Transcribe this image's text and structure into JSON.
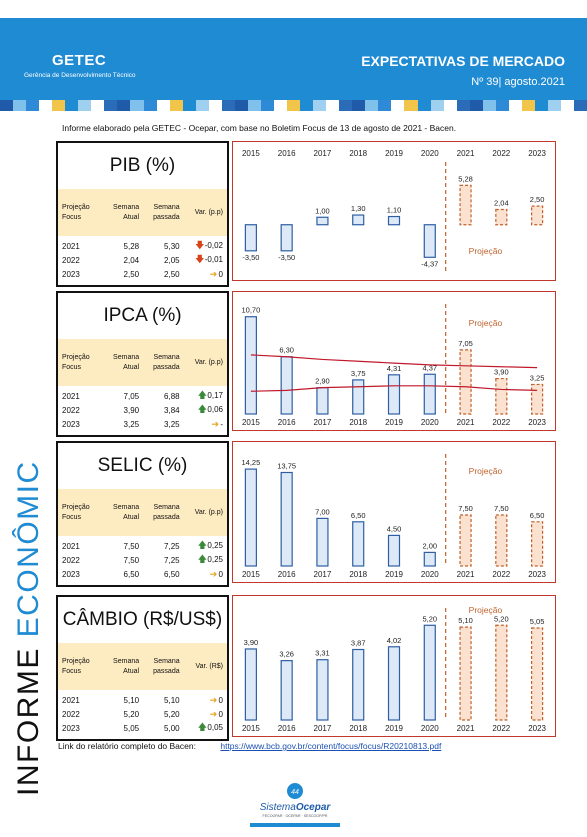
{
  "header": {
    "brand": "GETEC",
    "brand_sub": "Gerência de Desenvolvimento Técnico",
    "title": "EXPECTATIVAS DE MERCADO",
    "edition": "Nº 39| agosto.2021"
  },
  "intro": "Informe elaborado pela GETEC - Ocepar, com base no Boletim Focus de 13 de agosto de 2021 - Bacen.",
  "side_title": {
    "part1": "INFORME ",
    "part2": "ECONÔMICO"
  },
  "footer": {
    "label": "Link do relatório completo do Bacen:",
    "link": "https://www.bcb.gov.br/content/focus/focus/R20210813.pdf"
  },
  "logo": {
    "name_a": "Sistema",
    "name_b": "Ocepar",
    "sub": "FECOOPAR · OCEPAR · SESCOOP/PR"
  },
  "colors": {
    "header_blue": "#1f8bd3",
    "table_head": "#fdebc1",
    "bar_hist_fill": "#dde9f7",
    "bar_hist_stroke": "#2e5fa3",
    "bar_proj_fill": "#fbe1cf",
    "bar_proj_stroke": "#c0622b",
    "trend_red": "#c0192b"
  },
  "panels": [
    {
      "title": "PIB (%)",
      "headers": [
        "Projeção Focus",
        "Semana Atual",
        "Semana passada",
        "Var. (p.p)"
      ],
      "rows": [
        {
          "year": "2021",
          "atual": "5,28",
          "passada": "5,30",
          "trend": "down",
          "var": "-0,02"
        },
        {
          "year": "2022",
          "atual": "2,04",
          "passada": "2,05",
          "trend": "down",
          "var": "-0,01"
        },
        {
          "year": "2023",
          "atual": "2,50",
          "passada": "2,50",
          "trend": "flat",
          "var": "0"
        }
      ]
    },
    {
      "title": "IPCA (%)",
      "headers": [
        "Projeção Focus",
        "Semana Atual",
        "Semana passada",
        "Var. (p.p)"
      ],
      "rows": [
        {
          "year": "2021",
          "atual": "7,05",
          "passada": "6,88",
          "trend": "up",
          "var": "0,17"
        },
        {
          "year": "2022",
          "atual": "3,90",
          "passada": "3,84",
          "trend": "up",
          "var": "0,06"
        },
        {
          "year": "2023",
          "atual": "3,25",
          "passada": "3,25",
          "trend": "flat",
          "var": "-"
        }
      ]
    },
    {
      "title": "SELIC (%)",
      "headers": [
        "Projeção Focus",
        "Semana Atual",
        "Semana passada",
        "Var. (p.p)"
      ],
      "rows": [
        {
          "year": "2021",
          "atual": "7,50",
          "passada": "7,25",
          "trend": "up",
          "var": "0,25"
        },
        {
          "year": "2022",
          "atual": "7,50",
          "passada": "7,25",
          "trend": "up",
          "var": "0,25"
        },
        {
          "year": "2023",
          "atual": "6,50",
          "passada": "6,50",
          "trend": "flat",
          "var": "0"
        }
      ]
    },
    {
      "title": "CÂMBIO (R$/US$)",
      "headers": [
        "Projeção Focus",
        "Semana Atual",
        "Semana passada",
        "Var. (R$)"
      ],
      "rows": [
        {
          "year": "2021",
          "atual": "5,10",
          "passada": "5,10",
          "trend": "flat",
          "var": "0"
        },
        {
          "year": "2022",
          "atual": "5,20",
          "passada": "5,20",
          "trend": "flat",
          "var": "0"
        },
        {
          "year": "2023",
          "atual": "5,05",
          "passada": "5,00",
          "trend": "up",
          "var": "0,05"
        }
      ]
    }
  ],
  "chart_data": [
    {
      "type": "bar",
      "categories": [
        "2015",
        "2016",
        "2017",
        "2018",
        "2019",
        "2020",
        "2021",
        "2022",
        "2023"
      ],
      "values": [
        -3.5,
        -3.5,
        1.0,
        1.3,
        1.1,
        -4.37,
        5.28,
        2.04,
        2.5
      ],
      "labels": [
        "-3,50",
        "-3,50",
        "1,00",
        "1,30",
        "1,10",
        "-4,37",
        "5,28",
        "2,04",
        "2,50"
      ],
      "projection_from": "2021",
      "projection_label": "Projeção",
      "axis_position": "top",
      "ylim": [
        -5,
        6
      ]
    },
    {
      "type": "bar",
      "categories": [
        "2015",
        "2016",
        "2017",
        "2018",
        "2019",
        "2020",
        "2021",
        "2022",
        "2023"
      ],
      "values": [
        10.7,
        6.3,
        2.9,
        3.75,
        4.31,
        4.37,
        7.05,
        3.9,
        3.25
      ],
      "labels": [
        "10,70",
        "6,30",
        "2,90",
        "3,75",
        "4,31",
        "4,37",
        "7,05",
        "3,90",
        "3,25"
      ],
      "projection_from": "2021",
      "projection_label": "Projeção",
      "axis_position": "bottom",
      "ylim": [
        0,
        11
      ],
      "lines": [
        {
          "values": [
            6.5,
            6.3,
            6.0,
            5.8,
            5.6,
            5.4,
            5.3,
            5.2,
            5.1
          ]
        },
        {
          "values": [
            2.5,
            2.6,
            2.9,
            3.0,
            3.1,
            3.1,
            3.0,
            2.7,
            2.6
          ]
        }
      ]
    },
    {
      "type": "bar",
      "categories": [
        "2015",
        "2016",
        "2017",
        "2018",
        "2019",
        "2020",
        "2021",
        "2022",
        "2023"
      ],
      "values": [
        14.25,
        13.75,
        7.0,
        6.5,
        4.5,
        2.0,
        7.5,
        7.5,
        6.5
      ],
      "labels": [
        "14,25",
        "13,75",
        "7,00",
        "6,50",
        "4,50",
        "2,00",
        "7,50",
        "7,50",
        "6,50"
      ],
      "projection_from": "2021",
      "projection_label": "Projeção",
      "axis_position": "bottom",
      "ylim": [
        0,
        15
      ]
    },
    {
      "type": "bar",
      "categories": [
        "2015",
        "2016",
        "2017",
        "2018",
        "2019",
        "2020",
        "2021",
        "2022",
        "2023"
      ],
      "values": [
        3.9,
        3.26,
        3.31,
        3.87,
        4.02,
        5.2,
        5.1,
        5.2,
        5.05
      ],
      "labels": [
        "3,90",
        "3,26",
        "3,31",
        "3,87",
        "4,02",
        "5,20",
        "5,10",
        "5,20",
        "5,05"
      ],
      "projection_from": "2021",
      "projection_label": "Projeção",
      "axis_position": "bottom",
      "ylim": [
        0,
        5.6
      ]
    }
  ]
}
